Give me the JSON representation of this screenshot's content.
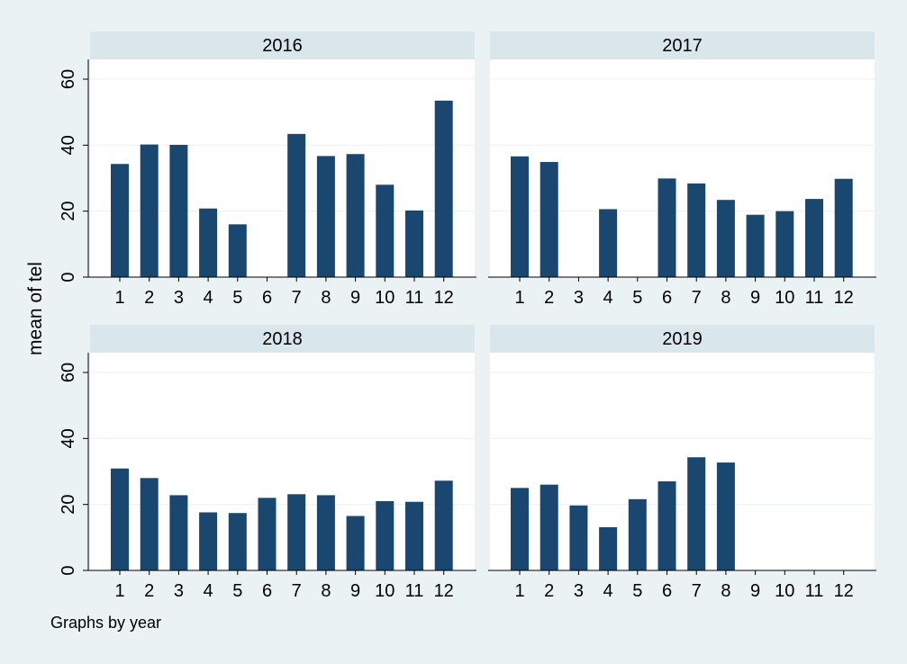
{
  "chart_data": {
    "type": "bar",
    "ylabel": "mean of tel",
    "note": "Graphs by year",
    "ylim": [
      0,
      66
    ],
    "yticks": [
      0,
      20,
      40,
      60
    ],
    "categories": [
      "1",
      "2",
      "3",
      "4",
      "5",
      "6",
      "7",
      "8",
      "9",
      "10",
      "11",
      "12"
    ],
    "bar_color": "#1a476f",
    "strip_color": "#d9e6eb",
    "background_color": "#eaf2f3",
    "grid": true,
    "panels": [
      {
        "title": "2016",
        "values": [
          34.3,
          40.2,
          40.1,
          20.8,
          16.0,
          null,
          43.4,
          36.7,
          37.3,
          28.0,
          20.2,
          53.5
        ]
      },
      {
        "title": "2017",
        "values": [
          36.6,
          34.9,
          null,
          20.6,
          null,
          29.9,
          28.4,
          23.4,
          18.9,
          20.0,
          23.7,
          29.8
        ]
      },
      {
        "title": "2018",
        "values": [
          30.9,
          28.0,
          22.8,
          17.6,
          17.4,
          22.0,
          23.1,
          22.8,
          16.5,
          21.0,
          20.8,
          27.2
        ]
      },
      {
        "title": "2019",
        "values": [
          25.0,
          26.0,
          19.7,
          13.1,
          21.6,
          27.0,
          34.3,
          32.7,
          null,
          null,
          null,
          null
        ]
      }
    ]
  }
}
